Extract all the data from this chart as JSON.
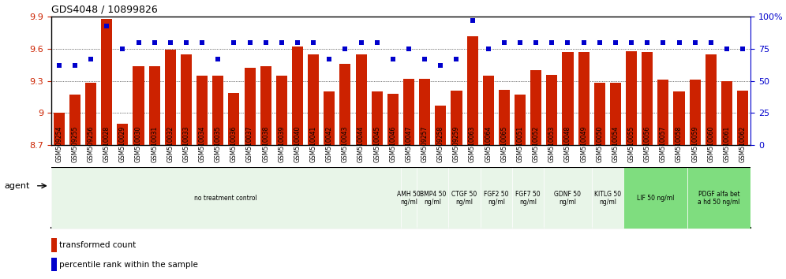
{
  "title": "GDS4048 / 10899826",
  "categories": [
    "GSM509254",
    "GSM509255",
    "GSM509256",
    "GSM510028",
    "GSM510029",
    "GSM510030",
    "GSM510031",
    "GSM510032",
    "GSM510033",
    "GSM510034",
    "GSM510035",
    "GSM510036",
    "GSM510037",
    "GSM510038",
    "GSM510039",
    "GSM510040",
    "GSM510041",
    "GSM510042",
    "GSM510043",
    "GSM510044",
    "GSM510045",
    "GSM510046",
    "GSM510047",
    "GSM509257",
    "GSM509258",
    "GSM509259",
    "GSM510063",
    "GSM510064",
    "GSM510065",
    "GSM510051",
    "GSM510052",
    "GSM510053",
    "GSM510048",
    "GSM510049",
    "GSM510050",
    "GSM510054",
    "GSM510055",
    "GSM510056",
    "GSM510057",
    "GSM510058",
    "GSM510059",
    "GSM510060",
    "GSM510061",
    "GSM510062"
  ],
  "bar_values": [
    9.0,
    9.17,
    9.28,
    9.88,
    8.9,
    9.44,
    9.44,
    9.59,
    9.55,
    9.35,
    9.35,
    9.19,
    9.42,
    9.44,
    9.35,
    9.62,
    9.55,
    9.2,
    9.46,
    9.55,
    9.2,
    9.18,
    9.32,
    9.32,
    9.07,
    9.21,
    9.72,
    9.35,
    9.22,
    9.17,
    9.4,
    9.36,
    9.57,
    9.57,
    9.28,
    9.28,
    9.58,
    9.57,
    9.31,
    9.2,
    9.31,
    9.55,
    9.3,
    9.21
  ],
  "dot_values_pct": [
    62,
    62,
    67,
    93,
    75,
    80,
    80,
    80,
    80,
    80,
    67,
    80,
    80,
    80,
    80,
    80,
    80,
    67,
    75,
    80,
    80,
    67,
    75,
    67,
    62,
    67,
    97,
    75,
    80,
    80,
    80,
    80,
    80,
    80,
    80,
    80,
    80,
    80,
    80,
    80,
    80,
    80,
    75,
    75
  ],
  "ylim": [
    8.7,
    9.9
  ],
  "yticks_left": [
    8.7,
    9.0,
    9.3,
    9.6,
    9.9
  ],
  "yticks_left_labels": [
    "8.7",
    "9",
    "9.3",
    "9.6",
    "9.9"
  ],
  "yticks_right": [
    0,
    25,
    50,
    75,
    100
  ],
  "yticks_right_labels": [
    "0",
    "25",
    "50",
    "75",
    "100%"
  ],
  "bar_color": "#cc2200",
  "dot_color": "#0000cc",
  "agent_groups": [
    {
      "start": 0,
      "end": 21,
      "color": "#e8f5e8",
      "label": "no treatment control"
    },
    {
      "start": 22,
      "end": 22,
      "color": "#e8f5e8",
      "label": "AMH 50\nng/ml"
    },
    {
      "start": 23,
      "end": 24,
      "color": "#e8f5e8",
      "label": "BMP4 50\nng/ml"
    },
    {
      "start": 25,
      "end": 26,
      "color": "#e8f5e8",
      "label": "CTGF 50\nng/ml"
    },
    {
      "start": 27,
      "end": 28,
      "color": "#e8f5e8",
      "label": "FGF2 50\nng/ml"
    },
    {
      "start": 29,
      "end": 30,
      "color": "#e8f5e8",
      "label": "FGF7 50\nng/ml"
    },
    {
      "start": 31,
      "end": 33,
      "color": "#e8f5e8",
      "label": "GDNF 50\nng/ml"
    },
    {
      "start": 34,
      "end": 35,
      "color": "#e8f5e8",
      "label": "KITLG 50\nng/ml"
    },
    {
      "start": 36,
      "end": 39,
      "color": "#7fdd7f",
      "label": "LIF 50 ng/ml"
    },
    {
      "start": 40,
      "end": 43,
      "color": "#7fdd7f",
      "label": "PDGF alfa bet\na hd 50 ng/ml"
    }
  ]
}
